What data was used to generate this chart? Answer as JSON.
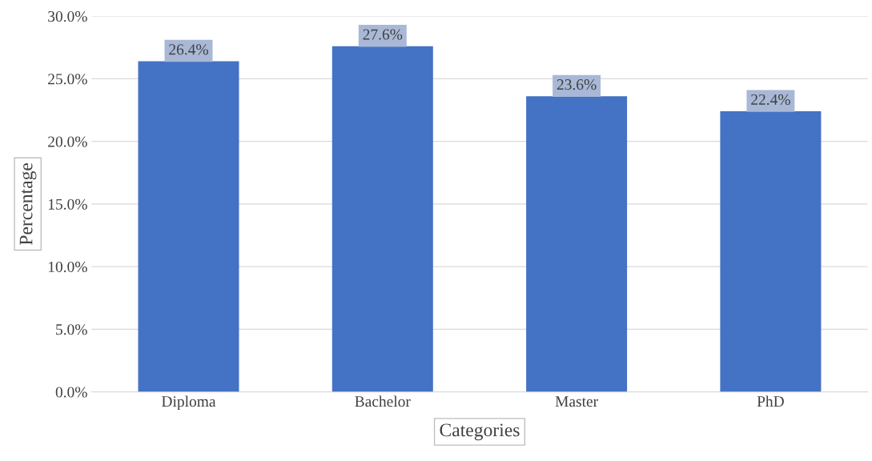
{
  "chart_data": {
    "type": "bar",
    "xlabel": "Categories",
    "ylabel": "Percentage",
    "categories": [
      "Diploma",
      "Bachelor",
      "Master",
      "PhD"
    ],
    "values": [
      26.4,
      27.6,
      23.6,
      22.4
    ],
    "value_labels": [
      "26.4%",
      "27.6%",
      "23.6%",
      "22.4%"
    ],
    "color": "#4472c4",
    "ylim": [
      0,
      30
    ],
    "yticks": [
      {
        "value": 0,
        "label": "0.0%"
      },
      {
        "value": 5,
        "label": "5.0%"
      },
      {
        "value": 10,
        "label": "10.0%"
      },
      {
        "value": 15,
        "label": "15.0%"
      },
      {
        "value": 20,
        "label": "20.0%"
      },
      {
        "value": 25,
        "label": "25.0%"
      },
      {
        "value": 30,
        "label": "30.0%"
      }
    ],
    "grid": "y",
    "legend": false
  }
}
